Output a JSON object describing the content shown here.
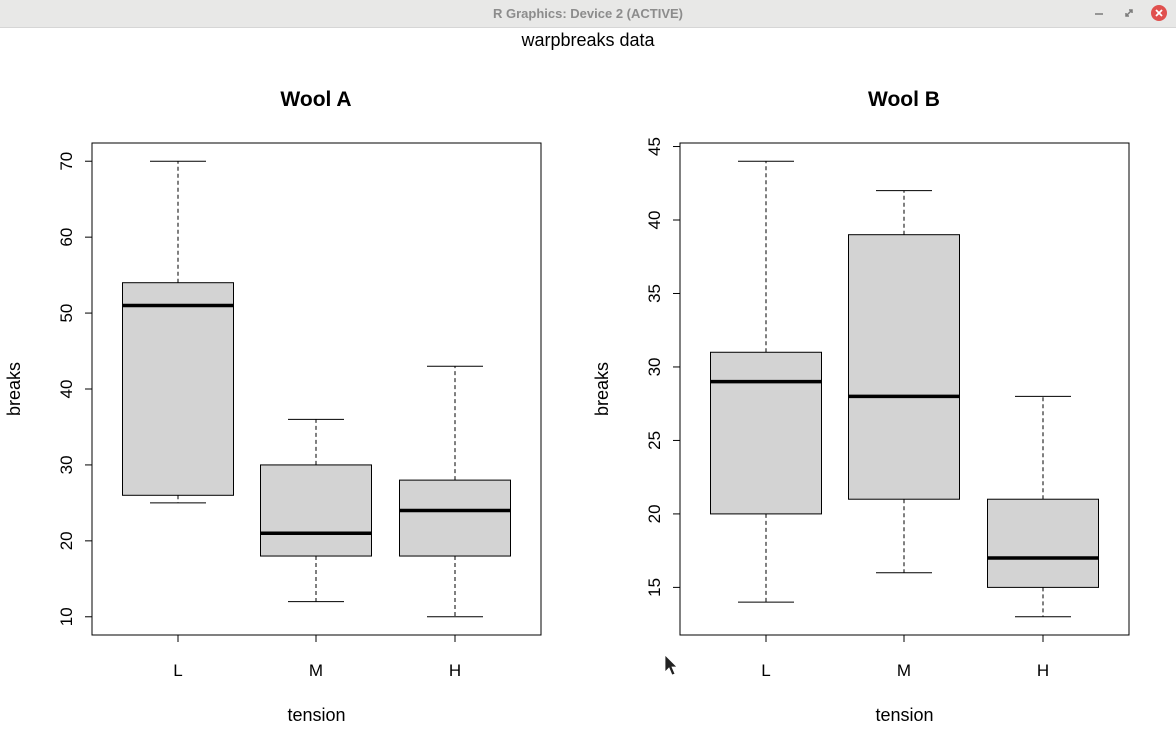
{
  "window": {
    "title": "R Graphics: Device 2 (ACTIVE)"
  },
  "colors": {
    "box_fill": "#d3d3d3",
    "close_btn": "#e0504e"
  },
  "chart_data": {
    "overall_title": "warpbreaks data",
    "panels": [
      {
        "type": "boxplot",
        "title": "Wool A",
        "xlabel": "tension",
        "ylabel": "breaks",
        "categories": [
          "L",
          "M",
          "H"
        ],
        "boxes": [
          {
            "category": "L",
            "min": 25,
            "q1": 26,
            "median": 51,
            "q3": 54,
            "max": 70
          },
          {
            "category": "M",
            "min": 12,
            "q1": 18,
            "median": 21,
            "q3": 30,
            "max": 36
          },
          {
            "category": "H",
            "min": 10,
            "q1": 18,
            "median": 24,
            "q3": 28,
            "max": 43
          }
        ],
        "ylim": [
          7.6,
          72.4
        ],
        "yticks": [
          10,
          20,
          30,
          40,
          50,
          60,
          70
        ]
      },
      {
        "type": "boxplot",
        "title": "Wool B",
        "xlabel": "tension",
        "ylabel": "breaks",
        "categories": [
          "L",
          "M",
          "H"
        ],
        "boxes": [
          {
            "category": "L",
            "min": 14,
            "q1": 20,
            "median": 29,
            "q3": 31,
            "max": 44
          },
          {
            "category": "M",
            "min": 16,
            "q1": 21,
            "median": 28,
            "q3": 39,
            "max": 42
          },
          {
            "category": "H",
            "min": 13,
            "q1": 15,
            "median": 17,
            "q3": 21,
            "max": 28
          }
        ],
        "ylim": [
          11.76,
          45.24
        ],
        "yticks": [
          15,
          20,
          25,
          30,
          35,
          40,
          45
        ]
      }
    ]
  }
}
